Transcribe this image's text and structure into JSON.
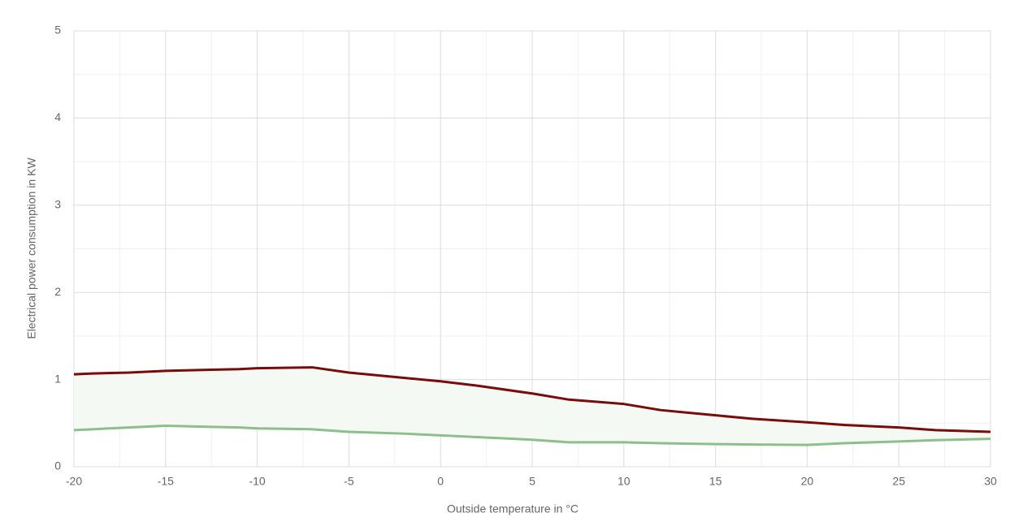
{
  "chart_data": {
    "type": "line",
    "xlabel": "Outside temperature in °C",
    "ylabel": "Electrical power consumption in KW",
    "x": [
      -20,
      -19,
      -17,
      -15,
      -13,
      -11,
      -10,
      -7,
      -5,
      -2,
      0,
      2,
      5,
      7,
      10,
      12,
      15,
      17,
      20,
      22,
      25,
      27,
      30
    ],
    "series": [
      {
        "color": "#7b0b0b",
        "values": [
          1.06,
          1.07,
          1.08,
          1.1,
          1.11,
          1.12,
          1.13,
          1.14,
          1.08,
          1.02,
          0.98,
          0.93,
          0.84,
          0.77,
          0.72,
          0.65,
          0.59,
          0.55,
          0.51,
          0.48,
          0.45,
          0.42,
          0.4
        ]
      },
      {
        "color": "#8dbf8d",
        "values": [
          0.42,
          0.43,
          0.45,
          0.47,
          0.46,
          0.45,
          0.44,
          0.43,
          0.4,
          0.38,
          0.36,
          0.34,
          0.31,
          0.28,
          0.28,
          0.27,
          0.26,
          0.255,
          0.25,
          0.27,
          0.29,
          0.305,
          0.32
        ]
      }
    ],
    "fill_between": "#f5f9f3",
    "xlim": [
      -20,
      30
    ],
    "xticks": [
      -20,
      -15,
      -10,
      -5,
      0,
      5,
      10,
      15,
      20,
      25,
      30
    ],
    "xminorticks": [
      -17.5,
      -12.5,
      -7.5,
      -2.5,
      2.5,
      7.5,
      12.5,
      17.5,
      22.5,
      27.5
    ],
    "ylim": [
      0,
      5
    ],
    "yticks": [
      0,
      1,
      2,
      3,
      4,
      5
    ],
    "yminorticks": [
      0.5,
      1.5,
      2.5,
      3.5,
      4.5
    ],
    "grid": true
  }
}
